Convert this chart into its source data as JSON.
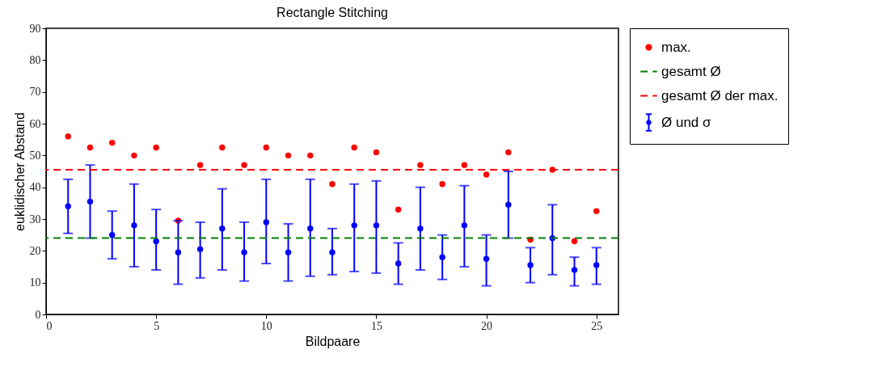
{
  "chart_data": {
    "type": "scatter",
    "title": "Rectangle Stitching",
    "xlabel": "Bildpaare",
    "ylabel": "euklidischer Abstand",
    "x": [
      1,
      2,
      3,
      4,
      5,
      6,
      7,
      8,
      9,
      10,
      11,
      12,
      13,
      14,
      15,
      16,
      17,
      18,
      19,
      20,
      21,
      22,
      23,
      24,
      25
    ],
    "series": [
      {
        "name": "max.",
        "color": "#ff0000",
        "values": [
          56,
          52.5,
          54,
          50,
          52.5,
          29.5,
          47,
          52.5,
          47,
          52.5,
          50,
          50,
          41,
          52.5,
          51,
          33,
          47,
          41,
          47,
          44,
          51,
          23.5,
          45.5,
          23,
          32.5
        ]
      },
      {
        "name": "Ø und σ",
        "color": "#0000ff",
        "values": [
          34,
          35.5,
          25,
          28,
          23,
          19.5,
          20.5,
          27,
          19.5,
          29,
          19.5,
          27,
          19.5,
          28,
          28,
          16,
          27,
          18,
          28,
          17.5,
          34.5,
          15.5,
          24,
          14,
          15.5
        ],
        "errors": [
          [
            25.5,
            42.5
          ],
          [
            24,
            47
          ],
          [
            17.5,
            32.5
          ],
          [
            15,
            41
          ],
          [
            14,
            33
          ],
          [
            9.5,
            29.5
          ],
          [
            11.5,
            29
          ],
          [
            14,
            39.5
          ],
          [
            10.5,
            29
          ],
          [
            16,
            42.5
          ],
          [
            10.5,
            28.5
          ],
          [
            12,
            42.5
          ],
          [
            12.5,
            27
          ],
          [
            13.5,
            41
          ],
          [
            13,
            42
          ],
          [
            9.5,
            22.5
          ],
          [
            14,
            40
          ],
          [
            11,
            25
          ],
          [
            15,
            40.5
          ],
          [
            9,
            25
          ],
          [
            24,
            45
          ],
          [
            10,
            21
          ],
          [
            12.5,
            34.5
          ],
          [
            9,
            18
          ],
          [
            9.5,
            21
          ]
        ]
      }
    ],
    "ref_lines": [
      {
        "axis": "y",
        "value": 24,
        "label": "gesamt Ø",
        "color": "#008000",
        "line_style": "dashed"
      },
      {
        "axis": "y",
        "value": 45.5,
        "label": "gesamt Ø der max.",
        "color": "#ff0000",
        "line_style": "dashed"
      }
    ],
    "xlim": [
      0,
      26
    ],
    "xticks": [
      0,
      5,
      10,
      15,
      20,
      25
    ],
    "ylim": [
      0,
      90
    ],
    "yticks": [
      0,
      10,
      20,
      30,
      40,
      50,
      60,
      70,
      80,
      90
    ],
    "grid": false,
    "legend": "right",
    "marker": "circle"
  }
}
